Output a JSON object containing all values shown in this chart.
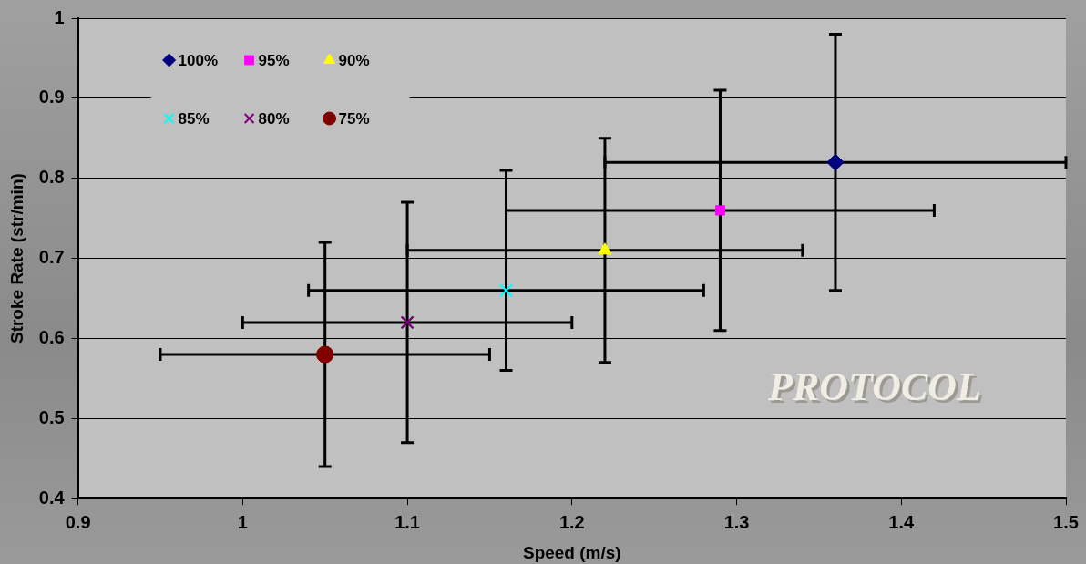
{
  "chart_data": {
    "type": "scatter",
    "xlabel": "Speed (m/s)",
    "ylabel": "Stroke Rate (str/min)",
    "xlim": [
      0.9,
      1.5
    ],
    "xticks": [
      0.9,
      1,
      1.1,
      1.2,
      1.3,
      1.4,
      1.5
    ],
    "ylim": [
      0.4,
      1
    ],
    "yticks": [
      0.4,
      0.5,
      0.6,
      0.7,
      0.8,
      0.9,
      1
    ],
    "grid": "y",
    "legend": "top left",
    "annotations": [
      "PROTOCOL"
    ],
    "series": [
      {
        "name": "100%",
        "color": "#000080",
        "marker": "diamond",
        "x": [
          1.36
        ],
        "values": [
          0.82
        ],
        "errors": [
          0.16
        ],
        "xerrors": [
          0.14
        ]
      },
      {
        "name": "95%",
        "color": "#ff00ff",
        "marker": "square",
        "x": [
          1.29
        ],
        "values": [
          0.76
        ],
        "errors": [
          0.15
        ],
        "xerrors": [
          0.13
        ]
      },
      {
        "name": "90%",
        "color": "#ffff00",
        "marker": "triangle",
        "x": [
          1.22
        ],
        "values": [
          0.71
        ],
        "errors": [
          0.14
        ],
        "xerrors": [
          0.12
        ]
      },
      {
        "name": "85%",
        "color": "#00ffff",
        "marker": "cross",
        "x": [
          1.16
        ],
        "values": [
          0.66
        ],
        "errors": [
          [
            0.56,
            0.81
          ]
        ],
        "xerrors": [
          0.12
        ]
      },
      {
        "name": "80%",
        "color": "#800080",
        "marker": "cross",
        "x": [
          1.1
        ],
        "values": [
          0.62
        ],
        "errors": [
          0.15
        ],
        "xerrors": [
          0.1
        ]
      },
      {
        "name": "75%",
        "color": "#800000",
        "marker": "circle",
        "x": [
          1.05
        ],
        "values": [
          0.58
        ],
        "errors": [
          0.14
        ],
        "xerrors": [
          0.1
        ]
      }
    ]
  }
}
